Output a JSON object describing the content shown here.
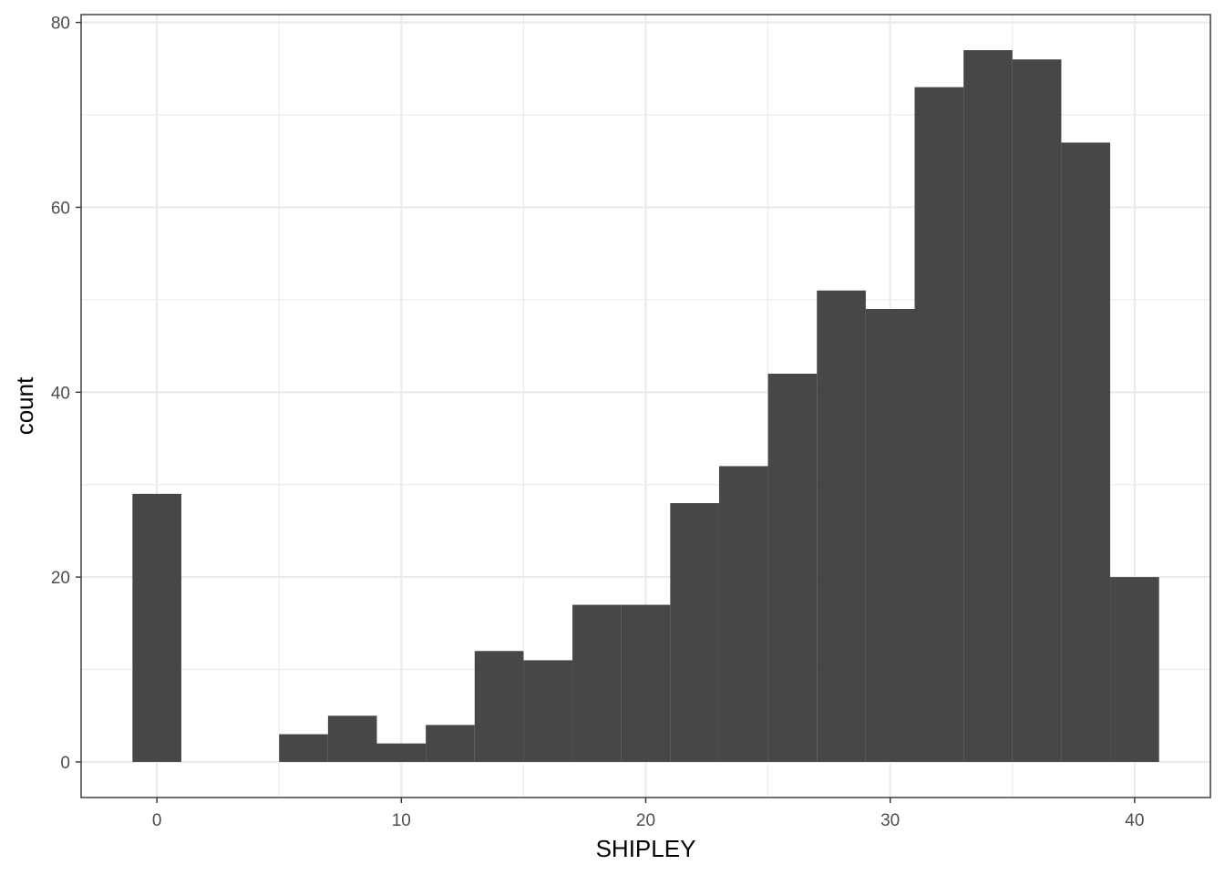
{
  "chart_data": {
    "type": "bar",
    "histogram": true,
    "xlabel": "SHIPLEY",
    "ylabel": "count",
    "xlim": [
      -3.1,
      43.1
    ],
    "ylim": [
      -3.85,
      80.85
    ],
    "x_ticks": [
      0,
      10,
      20,
      30,
      40
    ],
    "y_ticks": [
      0,
      20,
      40,
      60,
      80
    ],
    "bin_width": 2,
    "bins": [
      {
        "x": 0,
        "count": 29
      },
      {
        "x": 2,
        "count": 0
      },
      {
        "x": 4,
        "count": 0
      },
      {
        "x": 6,
        "count": 3
      },
      {
        "x": 8,
        "count": 5
      },
      {
        "x": 10,
        "count": 2
      },
      {
        "x": 12,
        "count": 4
      },
      {
        "x": 14,
        "count": 12
      },
      {
        "x": 16,
        "count": 11
      },
      {
        "x": 18,
        "count": 17
      },
      {
        "x": 20,
        "count": 17
      },
      {
        "x": 22,
        "count": 28
      },
      {
        "x": 24,
        "count": 32
      },
      {
        "x": 26,
        "count": 42
      },
      {
        "x": 28,
        "count": 51
      },
      {
        "x": 30,
        "count": 49
      },
      {
        "x": 32,
        "count": 73
      },
      {
        "x": 34,
        "count": 77
      },
      {
        "x": 36,
        "count": 76
      },
      {
        "x": 38,
        "count": 67
      },
      {
        "x": 40,
        "count": 20
      }
    ],
    "grid": true,
    "theme": "bw",
    "bar_color": "#474747",
    "grid_color": "#ebebeb",
    "panel_border_color": "#333333"
  }
}
